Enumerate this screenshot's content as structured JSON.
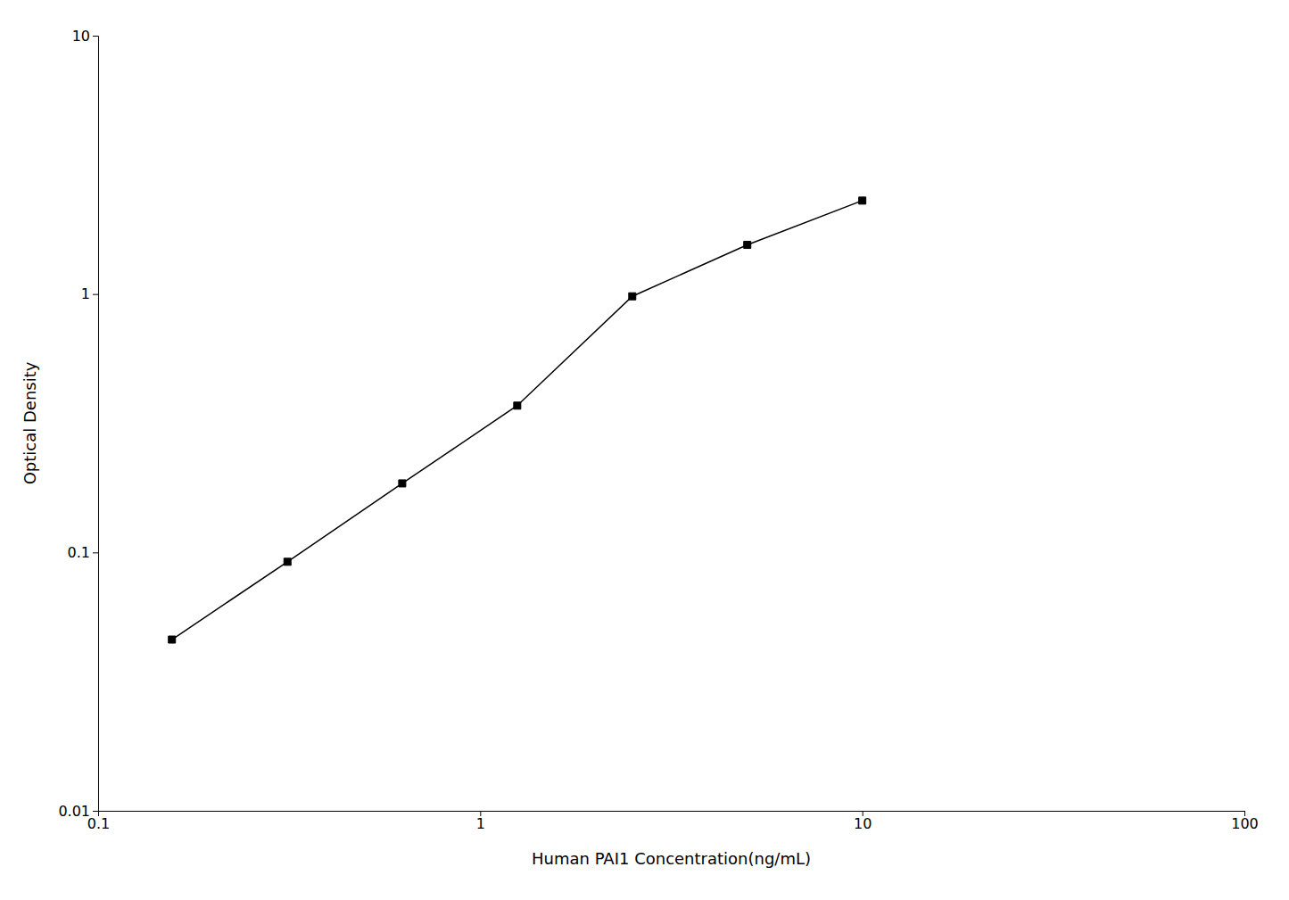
{
  "chart_data": {
    "type": "line",
    "x": [
      0.156,
      0.313,
      0.625,
      1.25,
      2.5,
      5.0,
      10.0
    ],
    "values": [
      0.046,
      0.092,
      0.185,
      0.37,
      0.98,
      1.55,
      2.3
    ],
    "xlabel": "Human PAI1 Concentration(ng/mL)",
    "ylabel": "Optical Density",
    "xlim": [
      0.1,
      100
    ],
    "ylim": [
      0.01,
      10
    ],
    "xticks": [
      0.1,
      1,
      10,
      100
    ],
    "yticks": [
      0.01,
      0.1,
      1,
      10
    ],
    "log": true,
    "grid": false,
    "color": "#000000",
    "marker": "square"
  }
}
